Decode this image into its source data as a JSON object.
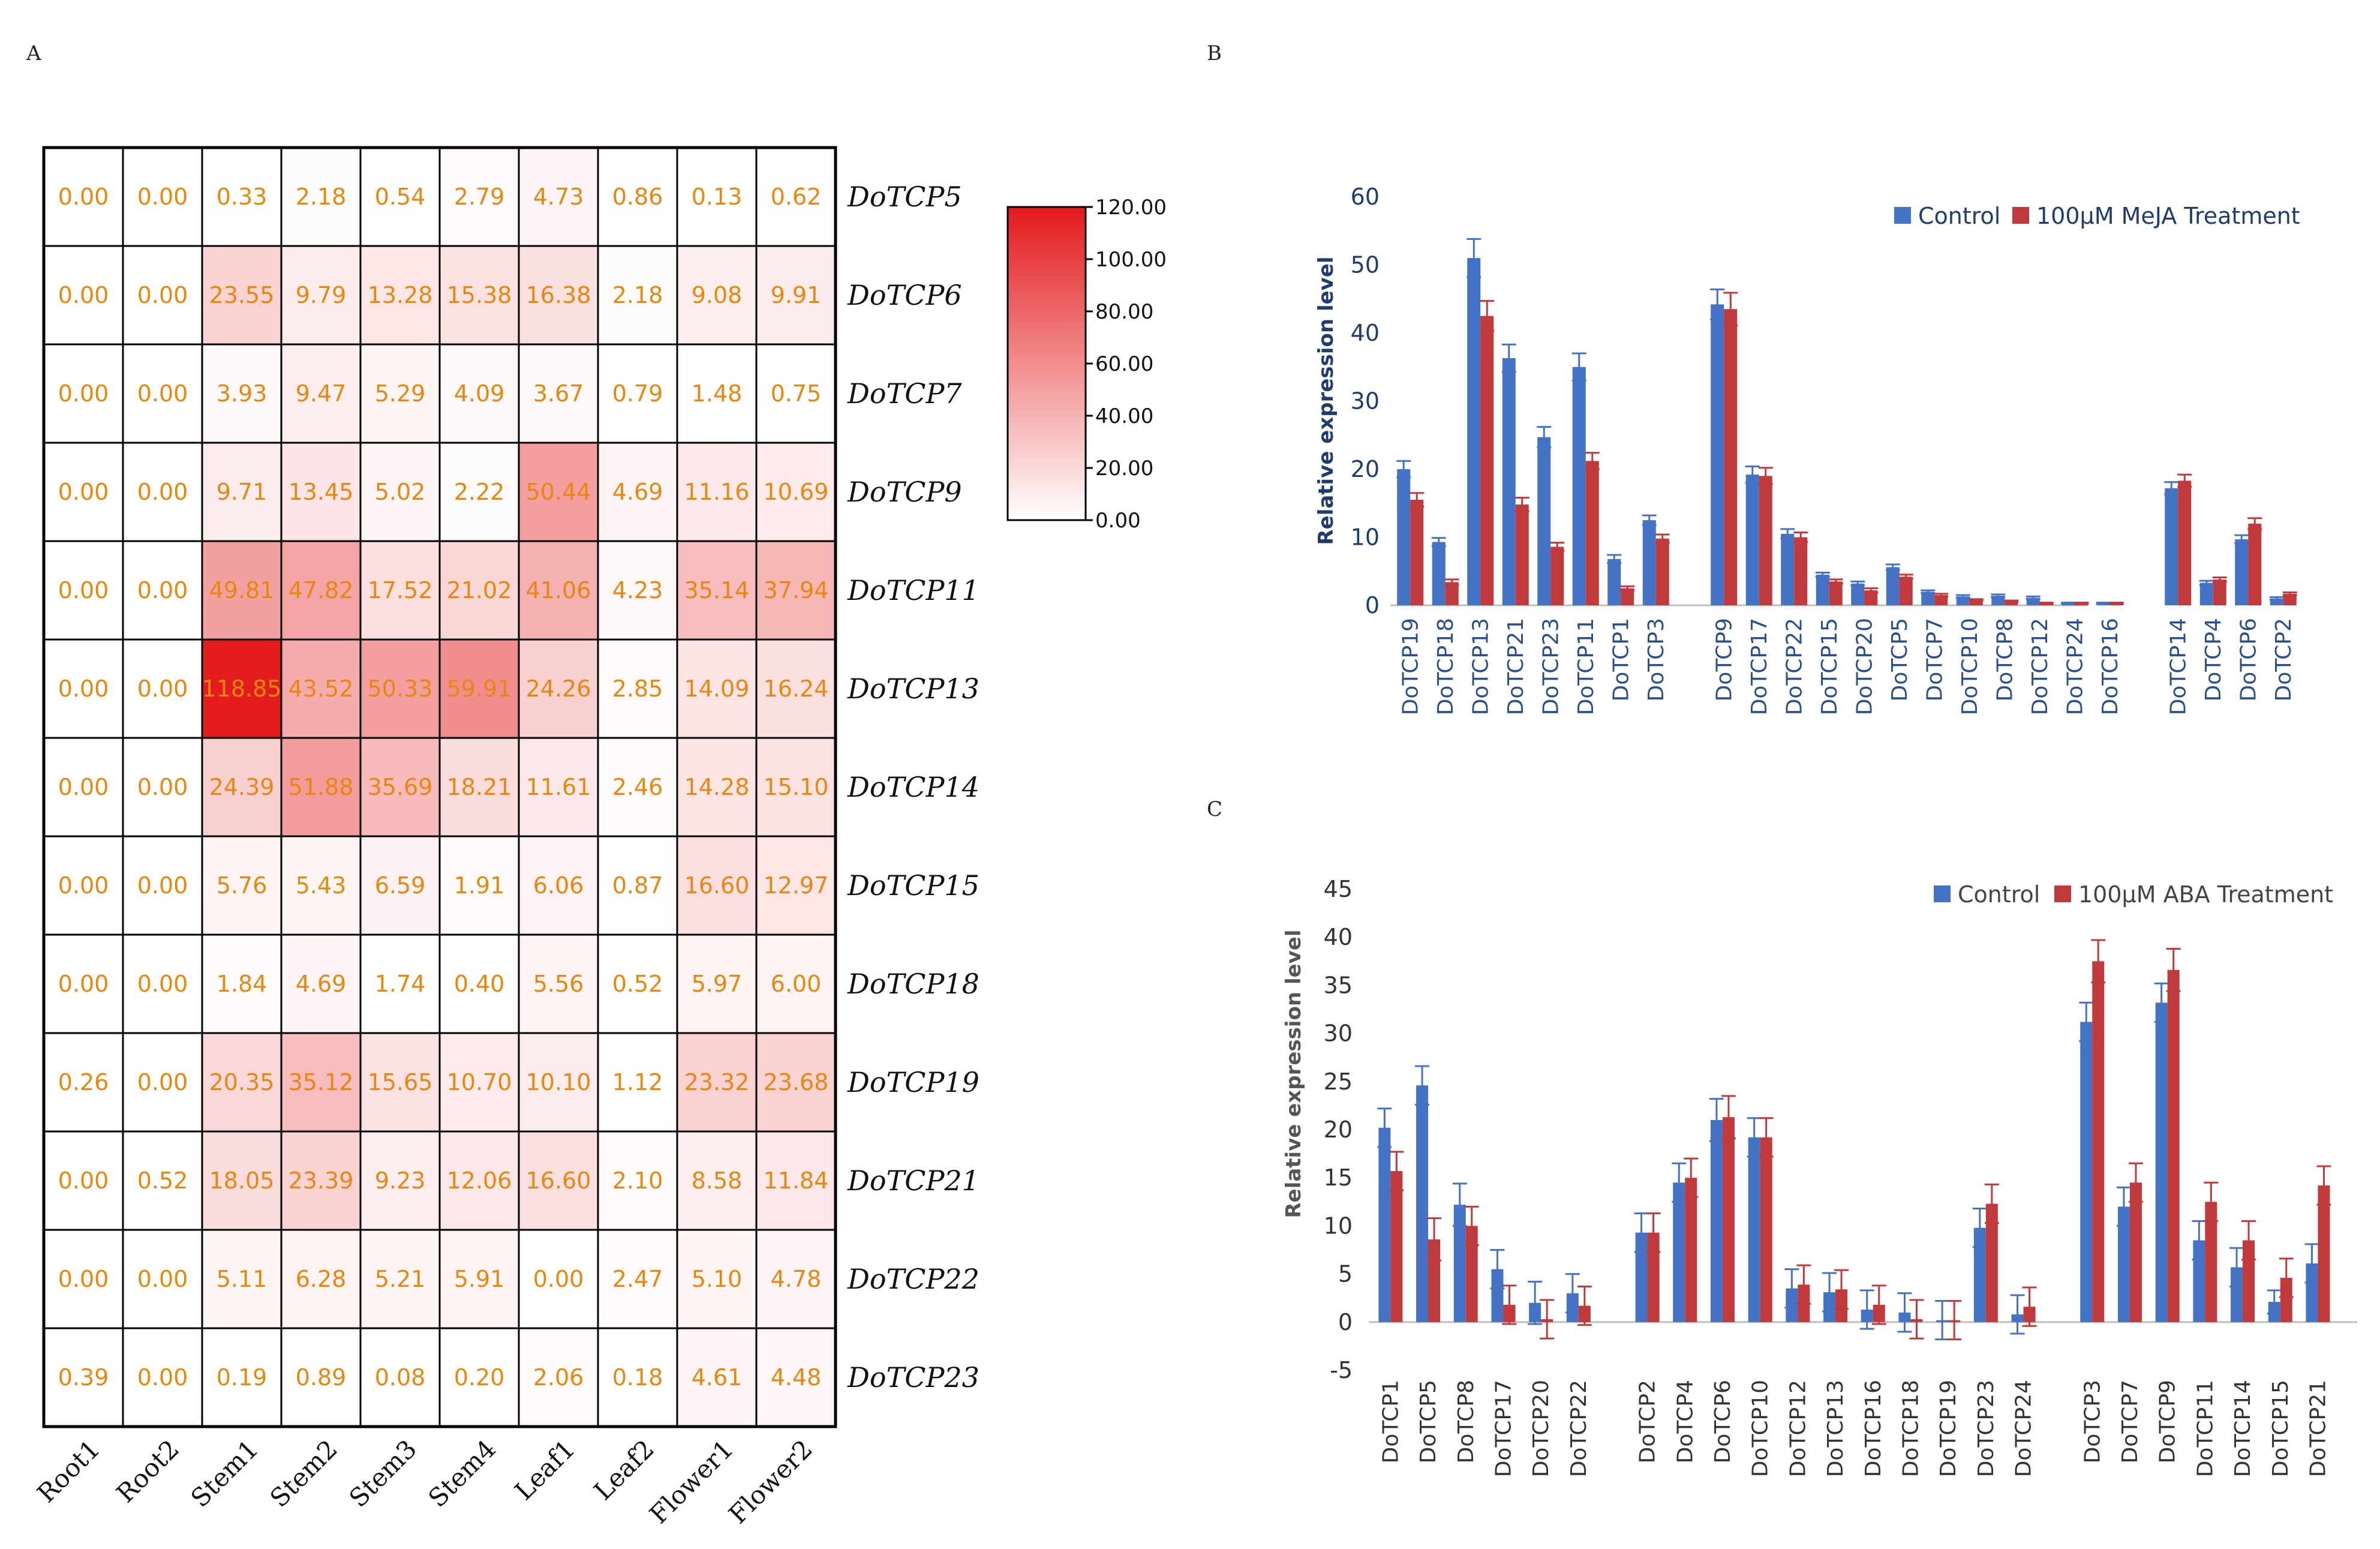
{
  "colors": {
    "control": "#4472c4",
    "treatment": "#c0393b",
    "heat_low": "#ffffff",
    "heat_high": "#e31a1c",
    "value_text": "#e8870e"
  },
  "chart_data": [
    {
      "panel": "A",
      "type": "heatmap",
      "columns": [
        "Root1",
        "Root2",
        "Stem1",
        "Stem2",
        "Stem3",
        "Stem4",
        "Leaf1",
        "Leaf2",
        "Flower1",
        "Flower2"
      ],
      "rows": [
        "DoTCP5",
        "DoTCP6",
        "DoTCP7",
        "DoTCP9",
        "DoTCP11",
        "DoTCP13",
        "DoTCP14",
        "DoTCP15",
        "DoTCP18",
        "DoTCP19",
        "DoTCP21",
        "DoTCP22",
        "DoTCP23"
      ],
      "values": [
        [
          "0.00",
          "0.00",
          "0.33",
          "2.18",
          "0.54",
          "2.79",
          "4.73",
          "0.86",
          "0.13",
          "0.62"
        ],
        [
          "0.00",
          "0.00",
          "23.55",
          "9.79",
          "13.28",
          "15.38",
          "16.38",
          "2.18",
          "9.08",
          "9.91"
        ],
        [
          "0.00",
          "0.00",
          "3.93",
          "9.47",
          "5.29",
          "4.09",
          "3.67",
          "0.79",
          "1.48",
          "0.75"
        ],
        [
          "0.00",
          "0.00",
          "9.71",
          "13.45",
          "5.02",
          "2.22",
          "50.44",
          "4.69",
          "11.16",
          "10.69"
        ],
        [
          "0.00",
          "0.00",
          "49.81",
          "47.82",
          "17.52",
          "21.02",
          "41.06",
          "4.23",
          "35.14",
          "37.94"
        ],
        [
          "0.00",
          "0.00",
          "118.85",
          "43.52",
          "50.33",
          "59.91",
          "24.26",
          "2.85",
          "14.09",
          "16.24"
        ],
        [
          "0.00",
          "0.00",
          "24.39",
          "51.88",
          "35.69",
          "18.21",
          "11.61",
          "2.46",
          "14.28",
          "15.10"
        ],
        [
          "0.00",
          "0.00",
          "5.76",
          "5.43",
          "6.59",
          "1.91",
          "6.06",
          "0.87",
          "16.60",
          "12.97"
        ],
        [
          "0.00",
          "0.00",
          "1.84",
          "4.69",
          "1.74",
          "0.40",
          "5.56",
          "0.52",
          "5.97",
          "6.00"
        ],
        [
          "0.26",
          "0.00",
          "20.35",
          "35.12",
          "15.65",
          "10.70",
          "10.10",
          "1.12",
          "23.32",
          "23.68"
        ],
        [
          "0.00",
          "0.52",
          "18.05",
          "23.39",
          "9.23",
          "12.06",
          "16.60",
          "2.10",
          "8.58",
          "11.84"
        ],
        [
          "0.00",
          "0.00",
          "5.11",
          "6.28",
          "5.21",
          "5.91",
          "0.00",
          "2.47",
          "5.10",
          "4.78"
        ],
        [
          "0.39",
          "0.00",
          "0.19",
          "0.89",
          "0.08",
          "0.20",
          "2.06",
          "0.18",
          "4.61",
          "4.48"
        ]
      ],
      "colorbar": {
        "range": [
          0,
          120
        ],
        "ticks": [
          "0.00",
          "20.00",
          "40.00",
          "60.00",
          "80.00",
          "100.00",
          "120.00"
        ]
      }
    },
    {
      "panel": "B",
      "type": "bar",
      "ylabel": "Relative expression level",
      "ylim": [
        0,
        60
      ],
      "yticks": [
        "0",
        "10",
        "20",
        "30",
        "40",
        "50",
        "60"
      ],
      "legend": [
        "Control",
        "100μM MeJA Treatment"
      ],
      "groups": [
        {
          "categories": [
            "DoTCP19",
            "DoTCP18",
            "DoTCP13",
            "DoTCP21",
            "DoTCP23",
            "DoTCP11",
            "DoTCP1",
            "DoTCP3"
          ],
          "control": [
            20,
            9.3,
            51,
            36.3,
            24.7,
            35,
            6.8,
            12.5
          ],
          "treatment": [
            15.5,
            3.4,
            42.5,
            14.8,
            8.6,
            21.2,
            2.5,
            9.8
          ],
          "control_err": [
            1.2,
            0.6,
            2.8,
            2.0,
            1.5,
            2.0,
            0.6,
            0.7
          ],
          "treatment_err": [
            1.0,
            0.4,
            2.2,
            1.0,
            0.6,
            1.2,
            0.3,
            0.6
          ]
        },
        {
          "categories": [
            "DoTCP9",
            "DoTCP17",
            "DoTCP22",
            "DoTCP15",
            "DoTCP20",
            "DoTCP5",
            "DoTCP7",
            "DoTCP10",
            "DoTCP8",
            "DoTCP12",
            "DoTCP24",
            "DoTCP16"
          ],
          "control": [
            44.2,
            19.2,
            10.5,
            4.5,
            3.2,
            5.6,
            2.0,
            1.3,
            1.4,
            1.1,
            0.3,
            0.3
          ],
          "treatment": [
            43.5,
            19.0,
            10.0,
            3.5,
            2.2,
            4.2,
            1.5,
            0.8,
            0.6,
            0.3,
            0.3,
            0.3
          ],
          "control_err": [
            2.2,
            1.2,
            0.7,
            0.3,
            0.3,
            0.4,
            0.2,
            0.2,
            0.2,
            0.2,
            0.1,
            0.1
          ],
          "treatment_err": [
            2.4,
            1.2,
            0.7,
            0.3,
            0.3,
            0.3,
            0.2,
            0.1,
            0.1,
            0.1,
            0.1,
            0.1
          ]
        },
        {
          "categories": [
            "DoTCP14",
            "DoTCP4",
            "DoTCP6",
            "DoTCP2"
          ],
          "control": [
            17.2,
            3.3,
            9.7,
            1.0
          ],
          "treatment": [
            18.3,
            3.8,
            12.0,
            1.7
          ],
          "control_err": [
            0.9,
            0.3,
            0.6,
            0.2
          ],
          "treatment_err": [
            0.9,
            0.3,
            0.8,
            0.2
          ]
        }
      ]
    },
    {
      "panel": "C",
      "type": "bar",
      "ylabel": "Relative expression level",
      "ylim": [
        -5,
        45
      ],
      "yticks": [
        "-5",
        "0",
        "5",
        "10",
        "15",
        "20",
        "25",
        "30",
        "35",
        "40",
        "45"
      ],
      "legend": [
        "Control",
        "100μM ABA Treatment"
      ],
      "groups": [
        {
          "categories": [
            "DoTCP1",
            "DoTCP5",
            "DoTCP8",
            "DoTCP17",
            "DoTCP20",
            "DoTCP22"
          ],
          "control": [
            20.2,
            24.6,
            12.2,
            5.5,
            2.0,
            3.0
          ],
          "treatment": [
            15.7,
            8.6,
            10.0,
            1.8,
            0.3,
            1.7
          ],
          "control_err": [
            2.0,
            2.0,
            2.2,
            2.0,
            2.2,
            2.0
          ],
          "treatment_err": [
            2.0,
            2.2,
            2.0,
            2.0,
            2.0,
            2.0
          ]
        },
        {
          "categories": [
            "DoTCP2",
            "DoTCP4",
            "DoTCP6",
            "DoTCP10",
            "DoTCP12",
            "DoTCP13",
            "DoTCP16",
            "DoTCP18",
            "DoTCP19",
            "DoTCP23",
            "DoTCP24"
          ],
          "control": [
            9.3,
            14.5,
            21.0,
            19.2,
            3.5,
            3.1,
            1.3,
            1.0,
            0.2,
            9.8,
            0.8
          ],
          "treatment": [
            9.3,
            15.0,
            21.3,
            19.2,
            3.9,
            3.4,
            1.8,
            0.3,
            0.2,
            12.3,
            1.6
          ],
          "control_err": [
            2.0,
            2.0,
            2.2,
            2.0,
            2.0,
            2.0,
            2.0,
            2.0,
            2.0,
            2.0,
            2.0
          ],
          "treatment_err": [
            2.0,
            2.0,
            2.2,
            2.0,
            2.0,
            2.0,
            2.0,
            2.0,
            2.0,
            2.0,
            2.0
          ]
        },
        {
          "categories": [
            "DoTCP3",
            "DoTCP7",
            "DoTCP9",
            "DoTCP11",
            "DoTCP14",
            "DoTCP15",
            "DoTCP21"
          ],
          "control": [
            31.2,
            12.0,
            33.2,
            8.5,
            5.7,
            2.1,
            6.1
          ],
          "treatment": [
            37.5,
            14.5,
            36.6,
            12.5,
            8.5,
            4.6,
            14.2
          ],
          "control_err": [
            2.0,
            2.0,
            2.0,
            2.0,
            2.0,
            1.2,
            2.0
          ],
          "treatment_err": [
            2.2,
            2.0,
            2.2,
            2.0,
            2.0,
            2.0,
            2.0
          ]
        }
      ]
    }
  ]
}
